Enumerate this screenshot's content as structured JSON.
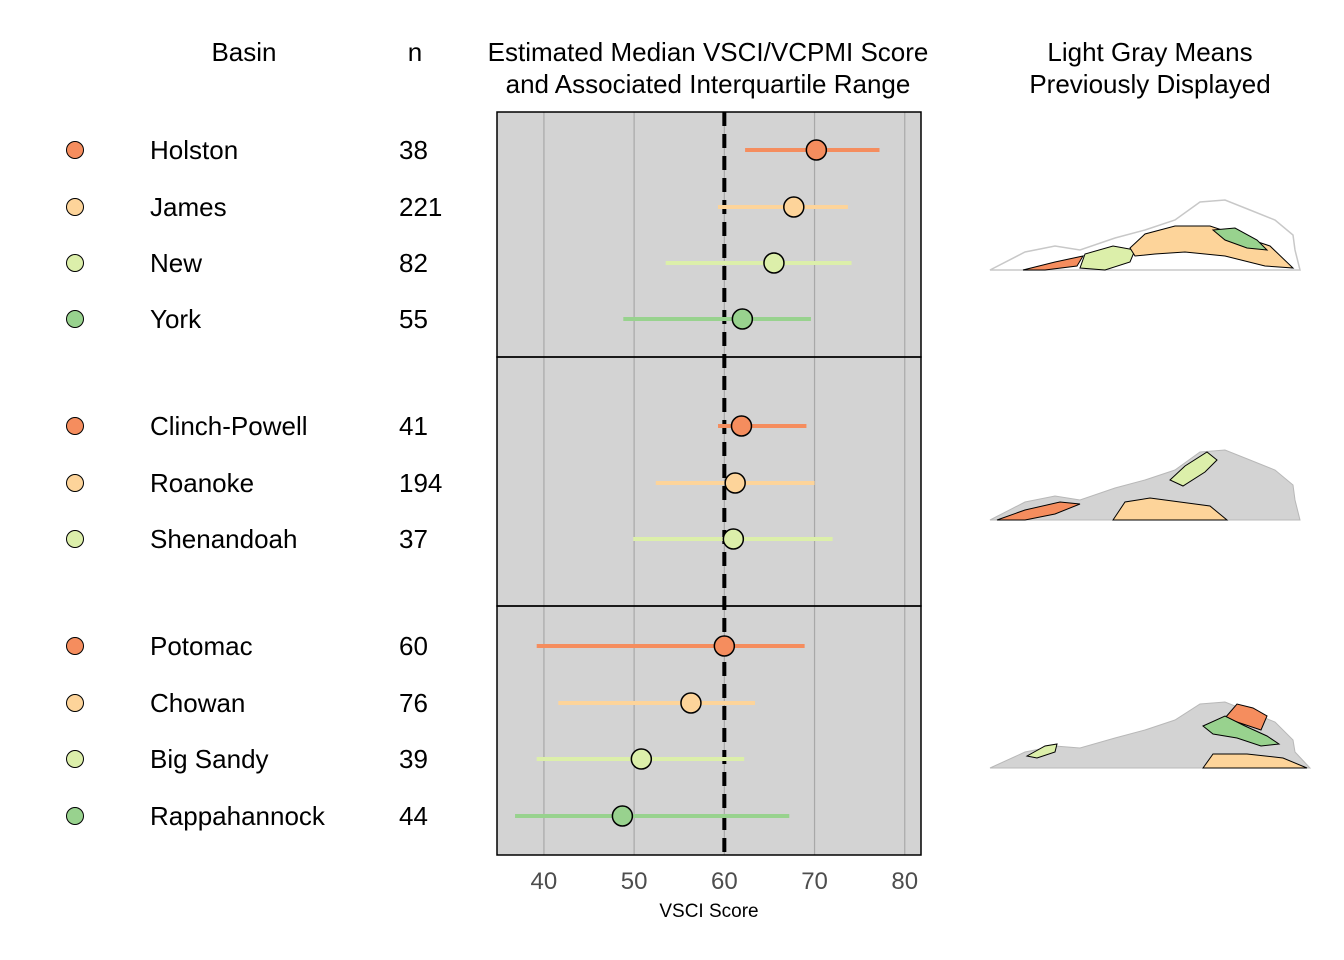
{
  "headers": {
    "basin": "Basin",
    "n": "n",
    "chart_title_line1": "Estimated Median VSCI/VCPMI Score",
    "chart_title_line2": "and Associated Interquartile Range",
    "map_title_line1": "Light Gray Means",
    "map_title_line2": "Previously Displayed"
  },
  "colors": {
    "orange": "#F58D5E",
    "peach": "#FDD49A",
    "light_green": "#DCEFAA",
    "green": "#98D28E",
    "panel_bg": "#D3D3D3",
    "gridline": "#A8A8A8",
    "map_gray": "#D3D3D3"
  },
  "rows": [
    {
      "basin": "Holston",
      "n": "38",
      "color": "#F58D5E"
    },
    {
      "basin": "James",
      "n": "221",
      "color": "#FDD49A"
    },
    {
      "basin": "New",
      "n": "82",
      "color": "#DCEFAA"
    },
    {
      "basin": "York",
      "n": "55",
      "color": "#98D28E"
    },
    {
      "basin": "Clinch-Powell",
      "n": "41",
      "color": "#F58D5E"
    },
    {
      "basin": "Roanoke",
      "n": "194",
      "color": "#FDD49A"
    },
    {
      "basin": "Shenandoah",
      "n": "37",
      "color": "#DCEFAA"
    },
    {
      "basin": "Potomac",
      "n": "60",
      "color": "#F58D5E"
    },
    {
      "basin": "Chowan",
      "n": "76",
      "color": "#FDD49A"
    },
    {
      "basin": "Big Sandy",
      "n": "39",
      "color": "#DCEFAA"
    },
    {
      "basin": "Rappahannock",
      "n": "44",
      "color": "#98D28E"
    }
  ],
  "chart_data": {
    "type": "scatter",
    "xlabel": "VSCI Score",
    "xlim": [
      34.8,
      81.8
    ],
    "xticks": [
      "40",
      "50",
      "60",
      "70",
      "80"
    ],
    "reference_line": 60,
    "grid": true,
    "panels": [
      {
        "points": [
          {
            "label": "Holston",
            "median": 70.2,
            "q1": 62.3,
            "q3": 77.2,
            "color": "#F58D5E"
          },
          {
            "label": "James",
            "median": 67.7,
            "q1": 59.3,
            "q3": 73.7,
            "color": "#FDD49A"
          },
          {
            "label": "New",
            "median": 65.5,
            "q1": 53.5,
            "q3": 74.1,
            "color": "#DCEFAA"
          },
          {
            "label": "York",
            "median": 62.0,
            "q1": 48.8,
            "q3": 69.6,
            "color": "#98D28E"
          }
        ]
      },
      {
        "points": [
          {
            "label": "Clinch-Powell",
            "median": 61.9,
            "q1": 59.3,
            "q3": 69.1,
            "color": "#F58D5E"
          },
          {
            "label": "Roanoke",
            "median": 61.2,
            "q1": 52.4,
            "q3": 70.0,
            "color": "#FDD49A"
          },
          {
            "label": "Shenandoah",
            "median": 61.0,
            "q1": 49.9,
            "q3": 72.0,
            "color": "#DCEFAA"
          }
        ]
      },
      {
        "points": [
          {
            "label": "Potomac",
            "median": 60.0,
            "q1": 39.2,
            "q3": 68.9,
            "color": "#F58D5E"
          },
          {
            "label": "Chowan",
            "median": 56.3,
            "q1": 41.6,
            "q3": 63.4,
            "color": "#FDD49A"
          },
          {
            "label": "Big Sandy",
            "median": 50.8,
            "q1": 39.2,
            "q3": 62.2,
            "color": "#DCEFAA"
          },
          {
            "label": "Rappahannock",
            "median": 48.7,
            "q1": 36.8,
            "q3": 67.2,
            "color": "#98D28E"
          }
        ]
      }
    ]
  }
}
